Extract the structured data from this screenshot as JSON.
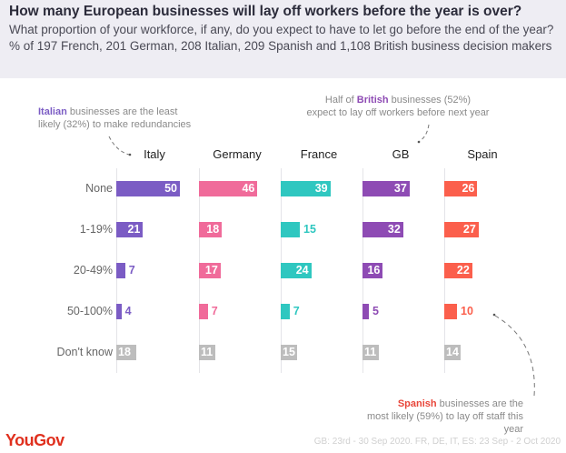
{
  "chart_data": {
    "type": "bar",
    "title": "How many European businesses will lay off workers before the year is over?",
    "subtitle": "What proportion of your workforce, if any, do you expect to have to let go before the end of the year? % of 197 French, 201 German, 208 Italian, 209 Spanish and 1,108 British business decision makers",
    "categories": [
      "None",
      "1-19%",
      "20-49%",
      "50-100%",
      "Don't know"
    ],
    "series": [
      {
        "name": "Italy",
        "color": "#7b5cc4",
        "values": [
          50,
          21,
          7,
          4,
          18
        ]
      },
      {
        "name": "Germany",
        "color": "#f06b9a",
        "values": [
          46,
          18,
          17,
          7,
          11
        ]
      },
      {
        "name": "France",
        "color": "#2fc7c0",
        "values": [
          39,
          15,
          24,
          7,
          15
        ]
      },
      {
        "name": "GB",
        "color": "#8e4bb4",
        "values": [
          37,
          32,
          16,
          5,
          11
        ]
      },
      {
        "name": "Spain",
        "color": "#fb5f4c",
        "values": [
          26,
          27,
          22,
          10,
          14
        ]
      }
    ],
    "dont_know_color": "#bdbdbd",
    "xlabel": "",
    "ylabel": "",
    "units": "%",
    "annotations": [
      {
        "target": "Italy",
        "highlight": "Italian",
        "highlight_color": "#7b5cc4",
        "text": " businesses are the least likely (32%) to make redundancies"
      },
      {
        "target": "GB",
        "prefix": "Half of ",
        "highlight": "British",
        "highlight_color": "#8e4bb4",
        "text": " businesses (52%) expect to lay off workers before next year"
      },
      {
        "target": "Spain",
        "highlight": "Spanish",
        "highlight_color": "#e8463a",
        "text": " businesses are the most likely (59%) to lay off staff this year"
      }
    ]
  },
  "annotations": {
    "italy_highlight": "Italian",
    "italy_line1": " businesses are the least",
    "italy_line2": "likely (32%) to make redundancies",
    "gb_prefix": "Half of ",
    "gb_highlight": "British",
    "gb_line1": " businesses (52%)",
    "gb_line2": "expect to lay off workers before next year",
    "spain_highlight": "Spanish",
    "spain_line1": " businesses are the",
    "spain_line2": "most likely (59%) to lay off staff this year"
  },
  "brand": {
    "logo": "YouGov",
    "color": "#e0301e"
  },
  "footer": "GB: 23rd - 30 Sep 2020. FR, DE, IT, ES: 23 Sep - 2 Oct 2020"
}
